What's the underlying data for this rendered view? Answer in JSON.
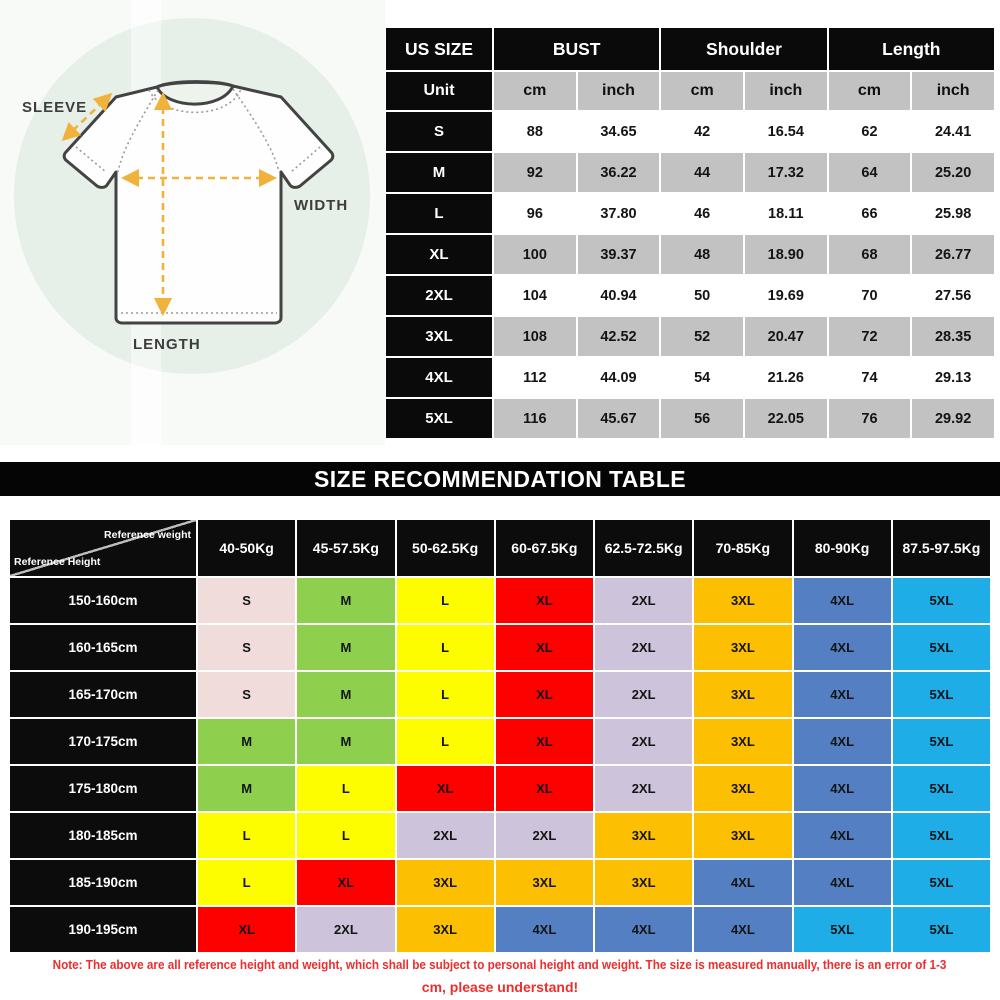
{
  "diagram": {
    "sleeve_label": "SLEEVE",
    "width_label": "WIDTH",
    "length_label": "LENGTH"
  },
  "banner_title": "SIZE RECOMMENDATION TABLE",
  "chart_data": [
    {
      "type": "table",
      "column_groups": [
        "US SIZE",
        "BUST",
        "Shoulder",
        "Length"
      ],
      "unit_label": "Unit",
      "units": [
        "cm",
        "inch",
        "cm",
        "inch",
        "cm",
        "inch"
      ],
      "rows": [
        {
          "size": "S",
          "values": [
            "88",
            "34.65",
            "42",
            "16.54",
            "62",
            "24.41"
          ]
        },
        {
          "size": "M",
          "values": [
            "92",
            "36.22",
            "44",
            "17.32",
            "64",
            "25.20"
          ]
        },
        {
          "size": "L",
          "values": [
            "96",
            "37.80",
            "46",
            "18.11",
            "66",
            "25.98"
          ]
        },
        {
          "size": "XL",
          "values": [
            "100",
            "39.37",
            "48",
            "18.90",
            "68",
            "26.77"
          ]
        },
        {
          "size": "2XL",
          "values": [
            "104",
            "40.94",
            "50",
            "19.69",
            "70",
            "27.56"
          ]
        },
        {
          "size": "3XL",
          "values": [
            "108",
            "42.52",
            "52",
            "20.47",
            "72",
            "28.35"
          ]
        },
        {
          "size": "4XL",
          "values": [
            "112",
            "44.09",
            "54",
            "21.26",
            "74",
            "29.13"
          ]
        },
        {
          "size": "5XL",
          "values": [
            "116",
            "45.67",
            "56",
            "22.05",
            "76",
            "29.92"
          ]
        }
      ]
    },
    {
      "type": "table",
      "title": "SIZE RECOMMENDATION TABLE",
      "corner_top_label": "Reference weight",
      "corner_bottom_label": "Reference Height",
      "weight_columns": [
        "40-50Kg",
        "45-57.5Kg",
        "50-62.5Kg",
        "60-67.5Kg",
        "62.5-72.5Kg",
        "70-85Kg",
        "80-90Kg",
        "87.5-97.5Kg"
      ],
      "rows": [
        {
          "height": "150-160cm",
          "sizes": [
            "S",
            "M",
            "L",
            "XL",
            "2XL",
            "3XL",
            "4XL",
            "5XL"
          ]
        },
        {
          "height": "160-165cm",
          "sizes": [
            "S",
            "M",
            "L",
            "XL",
            "2XL",
            "3XL",
            "4XL",
            "5XL"
          ]
        },
        {
          "height": "165-170cm",
          "sizes": [
            "S",
            "M",
            "L",
            "XL",
            "2XL",
            "3XL",
            "4XL",
            "5XL"
          ]
        },
        {
          "height": "170-175cm",
          "sizes": [
            "M",
            "M",
            "L",
            "XL",
            "2XL",
            "3XL",
            "4XL",
            "5XL"
          ]
        },
        {
          "height": "175-180cm",
          "sizes": [
            "M",
            "L",
            "XL",
            "XL",
            "2XL",
            "3XL",
            "4XL",
            "5XL"
          ]
        },
        {
          "height": "180-185cm",
          "sizes": [
            "L",
            "L",
            "2XL",
            "2XL",
            "3XL",
            "3XL",
            "4XL",
            "5XL"
          ]
        },
        {
          "height": "185-190cm",
          "sizes": [
            "L",
            "XL",
            "3XL",
            "3XL",
            "3XL",
            "4XL",
            "4XL",
            "5XL"
          ]
        },
        {
          "height": "190-195cm",
          "sizes": [
            "XL",
            "2XL",
            "3XL",
            "4XL",
            "4XL",
            "4XL",
            "5XL",
            "5XL"
          ]
        }
      ],
      "size_colors": {
        "S": "#f0dcdb",
        "M": "#8ed04e",
        "L": "#fdfd00",
        "XL": "#fd0000",
        "2XL": "#cdc4db",
        "3XL": "#fdbf01",
        "4XL": "#5480c3",
        "5XL": "#1fade7"
      }
    }
  ],
  "note": {
    "line1": "Note: The above are all reference height and weight, which shall be subject to personal height and weight. The size is measured manually, there is an error of 1-3",
    "line2": "cm, please understand!"
  },
  "colors": {
    "table_header_black": "#0a0a0a",
    "table_stripe_gray": "#c2c2c2",
    "banner_background": "#050505",
    "note_red": "#ee2d2d",
    "diagram_circle_mint": "#e6efe8",
    "arrow_orange": "#f1b23c",
    "shirt_outline_gray": "#434343"
  }
}
